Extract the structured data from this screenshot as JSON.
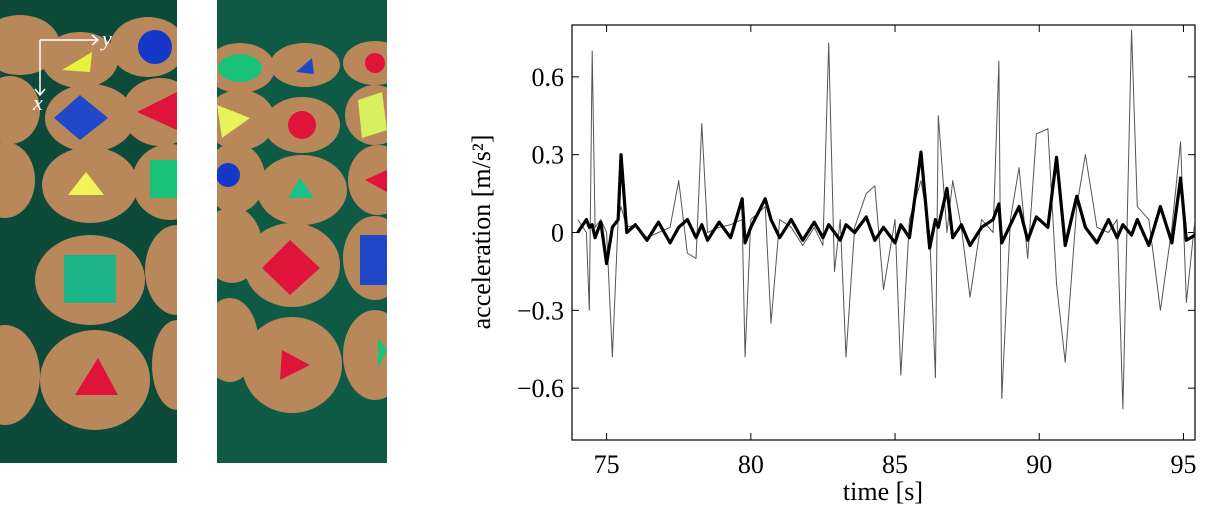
{
  "image_annotations": {
    "x_label": "x",
    "y_label": "y"
  },
  "chart_data": {
    "type": "line",
    "x_label": "time [s]",
    "y_label": "acceleration [m/s²]",
    "x": [
      74.0,
      74.3,
      74.4,
      74.5,
      74.6,
      74.8,
      75.0,
      75.2,
      75.4,
      75.5,
      75.7,
      76.0,
      76.4,
      76.8,
      77.2,
      77.5,
      77.8,
      78.1,
      78.3,
      78.5,
      78.9,
      79.3,
      79.7,
      79.8,
      80.0,
      80.5,
      80.7,
      81.0,
      81.4,
      81.8,
      82.2,
      82.5,
      82.7,
      82.9,
      83.1,
      83.3,
      83.6,
      84.0,
      84.3,
      84.6,
      85.0,
      85.2,
      85.5,
      85.9,
      86.2,
      86.4,
      86.5,
      86.8,
      87.0,
      87.3,
      87.6,
      88.0,
      88.4,
      88.6,
      88.7,
      89.0,
      89.3,
      89.6,
      89.9,
      90.3,
      90.6,
      90.9,
      91.3,
      91.6,
      92.0,
      92.4,
      92.7,
      92.9,
      93.2,
      93.4,
      93.8,
      94.2,
      94.6,
      94.9,
      95.1,
      95.4
    ],
    "series": [
      {
        "color": "#555555",
        "width": 1,
        "values": [
          0.05,
          0.0,
          -0.3,
          0.7,
          0.02,
          0.05,
          0.0,
          -0.48,
          0.05,
          0.1,
          0.02,
          0.03,
          -0.02,
          0.0,
          0.02,
          0.2,
          -0.08,
          -0.1,
          0.42,
          0.0,
          0.02,
          0.03,
          0.05,
          -0.48,
          0.05,
          0.1,
          -0.35,
          0.05,
          0.02,
          -0.05,
          0.02,
          -0.05,
          0.73,
          -0.15,
          0.05,
          -0.48,
          0.02,
          0.15,
          0.18,
          -0.22,
          0.05,
          -0.55,
          0.05,
          0.2,
          0.0,
          -0.56,
          0.45,
          0.0,
          0.2,
          0.02,
          -0.25,
          0.05,
          0.0,
          0.66,
          -0.64,
          0.05,
          0.25,
          -0.1,
          0.38,
          0.4,
          -0.2,
          -0.5,
          0.1,
          0.3,
          0.02,
          0.0,
          0.05,
          -0.68,
          0.78,
          0.1,
          0.05,
          -0.3,
          0.02,
          0.35,
          -0.27,
          0.05
        ]
      },
      {
        "color": "#000000",
        "width": 3.2,
        "values": [
          0.0,
          0.05,
          0.02,
          0.03,
          -0.02,
          0.04,
          -0.12,
          0.02,
          0.05,
          0.3,
          0.0,
          0.03,
          -0.03,
          0.04,
          -0.04,
          0.02,
          0.05,
          -0.02,
          0.03,
          -0.03,
          0.04,
          -0.02,
          0.13,
          -0.04,
          0.02,
          0.13,
          0.05,
          -0.02,
          0.05,
          -0.03,
          0.04,
          -0.02,
          0.03,
          0.0,
          -0.03,
          0.03,
          0.0,
          0.06,
          -0.03,
          0.02,
          -0.04,
          0.03,
          -0.02,
          0.31,
          -0.06,
          0.05,
          0.02,
          0.17,
          -0.02,
          0.03,
          -0.05,
          0.02,
          0.05,
          0.11,
          -0.04,
          0.03,
          0.1,
          -0.03,
          0.06,
          0.02,
          0.29,
          -0.05,
          0.14,
          0.02,
          -0.04,
          0.05,
          -0.02,
          0.03,
          -0.01,
          0.05,
          -0.05,
          0.1,
          -0.04,
          0.21,
          -0.03,
          -0.01
        ]
      }
    ],
    "xlim": [
      73.8,
      95.4
    ],
    "xticks": [
      75,
      80,
      85,
      90,
      95
    ],
    "ylim": [
      -0.8,
      0.8
    ],
    "yticks": [
      {
        "value": -0.6,
        "label": "−0.6"
      },
      {
        "value": -0.3,
        "label": "−0.3"
      },
      0,
      0.3,
      0.6
    ],
    "grid": false
  }
}
